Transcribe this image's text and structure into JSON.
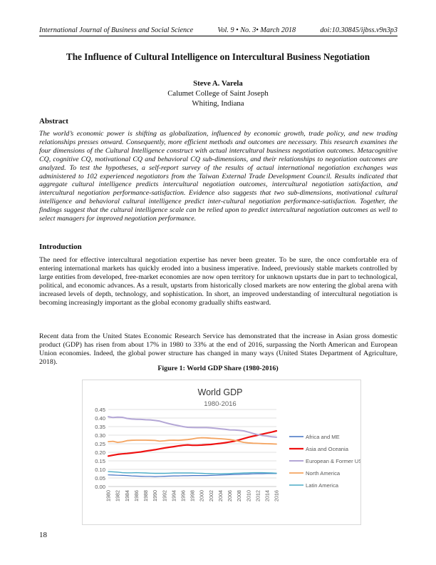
{
  "header": {
    "journal": "International Journal of Business and Social Science",
    "issue": "Vol. 9 • No. 3• March 2018",
    "doi": "doi:10.30845/ijbss.v9n3p3"
  },
  "paper": {
    "title": "The Influence of Cultural Intelligence on Intercultural Business Negotiation",
    "author": "Steve A. Varela",
    "affiliation": "Calumet College of Saint Joseph",
    "location": "Whiting, Indiana"
  },
  "abstract": {
    "heading": "Abstract",
    "text": "The world’s economic power is shifting as globalization, influenced by economic growth, trade policy, and new trading relationships presses onward. Consequently, more efficient methods and outcomes are necessary. This research examines the four dimensions of the Cultural Intelligence construct with actual intercultural business negotiation outcomes. Metacognitive CQ, cognitive CQ, motivational CQ and behavioral CQ sub-dimensions, and their relationships to negotiation outcomes are analyzed. To test the hypotheses, a self-report survey of the results of actual international negotiation exchanges was administered to 102 experienced negotiators from the Taiwan External Trade Development Council. Results indicated that aggregate cultural intelligence predicts intercultural negotiation outcomes, intercultural negotiation satisfaction, and intercultural negotiation performance-satisfaction. Evidence also suggests that two sub-dimensions, motivational cultural intelligence and behavioral cultural intelligence predict inter-cultural negotiation performance-satisfaction. Together, the findings suggest that the cultural intelligence scale can be relied upon to predict intercultural negotiation outcomes as well to select managers for improved negotiation performance."
  },
  "introduction": {
    "heading": "Introduction",
    "paragraphs": [
      "The need for effective intercultural negotiation expertise has never been greater. To be sure, the once comfortable era of entering international markets has quickly eroded into a business imperative. Indeed, previously stable markets controlled by large entities from developed, free-market economies are now open territory for unknown upstarts due in part to technological, political, and economic advances. As a result, upstarts from historically closed markets are now entering the global arena with increased levels of depth, technology, and sophistication. In short, an improved understanding of intercultural negotiation is becoming increasingly important as the global economy gradually shifts eastward.",
      "Recent data from the United States Economic Research Service has demonstrated that the increase in Asian gross domestic product (GDP) has risen from about 17% in 1980 to 33% at the end of 2016, surpassing the North American and European Union economies. Indeed, the global power structure has changed in many ways (United States Department of Agriculture, 2018)."
    ]
  },
  "figure": {
    "caption": "Figure 1: World GDP Share (1980-2016)"
  },
  "chart_data": {
    "type": "line",
    "title": "World GDP",
    "subtitle": "1980-2016",
    "x": [
      1980,
      1981,
      1982,
      1983,
      1984,
      1985,
      1986,
      1987,
      1988,
      1989,
      1990,
      1991,
      1992,
      1993,
      1994,
      1995,
      1996,
      1997,
      1998,
      1999,
      2000,
      2001,
      2002,
      2003,
      2004,
      2005,
      2006,
      2007,
      2008,
      2009,
      2010,
      2011,
      2012,
      2013,
      2014,
      2015,
      2016
    ],
    "x_tick_labels": [
      "1980",
      "1982",
      "1984",
      "1986",
      "1988",
      "1990",
      "1992",
      "1994",
      "1996",
      "1998",
      "2000",
      "2002",
      "2004",
      "2006",
      "2008",
      "2010",
      "2012",
      "2014",
      "2016"
    ],
    "ylim": [
      0,
      0.45
    ],
    "y_ticks": [
      "0.00",
      "0.05",
      "0.10",
      "0.15",
      "0.20",
      "0.25",
      "0.30",
      "0.35",
      "0.40",
      "0.45"
    ],
    "grid": true,
    "legend_position": "right",
    "series": [
      {
        "name": "Africa and ME",
        "color": "#4472c4",
        "width": 1.2,
        "values": [
          0.068,
          0.067,
          0.066,
          0.065,
          0.064,
          0.062,
          0.061,
          0.06,
          0.059,
          0.059,
          0.058,
          0.059,
          0.06,
          0.061,
          0.062,
          0.062,
          0.063,
          0.063,
          0.064,
          0.064,
          0.064,
          0.064,
          0.065,
          0.066,
          0.067,
          0.068,
          0.069,
          0.07,
          0.071,
          0.072,
          0.073,
          0.074,
          0.075,
          0.075,
          0.076,
          0.076,
          0.076
        ]
      },
      {
        "name": "Asia and Oceania",
        "color": "#ee1111",
        "width": 2.2,
        "values": [
          0.178,
          0.183,
          0.188,
          0.191,
          0.193,
          0.196,
          0.199,
          0.202,
          0.207,
          0.211,
          0.215,
          0.22,
          0.225,
          0.229,
          0.233,
          0.237,
          0.241,
          0.243,
          0.241,
          0.241,
          0.242,
          0.244,
          0.246,
          0.249,
          0.252,
          0.256,
          0.26,
          0.265,
          0.272,
          0.28,
          0.288,
          0.294,
          0.3,
          0.306,
          0.312,
          0.318,
          0.325
        ]
      },
      {
        "name": "European & Former USSR",
        "color": "#b4a7d6",
        "width": 2.0,
        "values": [
          0.408,
          0.403,
          0.405,
          0.404,
          0.398,
          0.394,
          0.393,
          0.392,
          0.39,
          0.389,
          0.386,
          0.382,
          0.374,
          0.367,
          0.361,
          0.356,
          0.35,
          0.346,
          0.345,
          0.344,
          0.344,
          0.344,
          0.343,
          0.34,
          0.337,
          0.334,
          0.331,
          0.33,
          0.328,
          0.325,
          0.318,
          0.31,
          0.303,
          0.298,
          0.295,
          0.291,
          0.288
        ]
      },
      {
        "name": "North America",
        "color": "#f4a460",
        "width": 1.8,
        "values": [
          0.262,
          0.264,
          0.258,
          0.261,
          0.268,
          0.27,
          0.271,
          0.271,
          0.271,
          0.27,
          0.269,
          0.265,
          0.267,
          0.27,
          0.271,
          0.27,
          0.272,
          0.274,
          0.278,
          0.283,
          0.285,
          0.284,
          0.282,
          0.281,
          0.279,
          0.277,
          0.274,
          0.27,
          0.264,
          0.258,
          0.255,
          0.253,
          0.252,
          0.251,
          0.25,
          0.249,
          0.248
        ]
      },
      {
        "name": "Latin America",
        "color": "#4bacc6",
        "width": 1.4,
        "values": [
          0.087,
          0.086,
          0.084,
          0.081,
          0.08,
          0.08,
          0.081,
          0.08,
          0.079,
          0.078,
          0.077,
          0.077,
          0.077,
          0.078,
          0.079,
          0.079,
          0.079,
          0.079,
          0.079,
          0.078,
          0.077,
          0.076,
          0.075,
          0.074,
          0.074,
          0.075,
          0.076,
          0.077,
          0.078,
          0.079,
          0.08,
          0.081,
          0.081,
          0.081,
          0.08,
          0.079,
          0.078
        ]
      }
    ]
  },
  "footer": {
    "page_number": "18"
  }
}
